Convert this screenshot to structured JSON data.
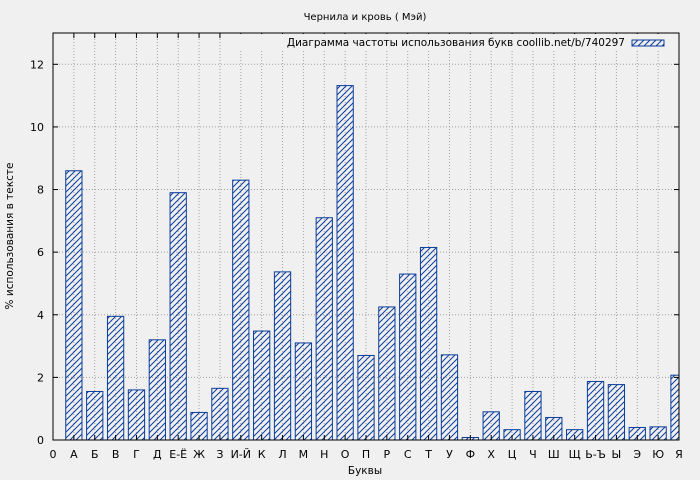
{
  "chart_data": {
    "type": "bar",
    "title": "Чернила и кровь ( Мэй)",
    "xlabel": "Буквы",
    "ylabel": "% использования в тексте",
    "legend": {
      "label": "Диаграмма частоты использования букв coollib.net/b/740297",
      "placement": "top-right"
    },
    "grid": true,
    "ylim": [
      0,
      13
    ],
    "yticks": [
      0,
      2,
      4,
      6,
      8,
      10,
      12
    ],
    "x_axis_ticks": [
      "0",
      "А",
      "Б",
      "В",
      "Г",
      "Д",
      "Е-Ё",
      "Ж",
      "З",
      "И-Й",
      "К",
      "Л",
      "М",
      "Н",
      "О",
      "П",
      "Р",
      "С",
      "Т",
      "У",
      "Ф",
      "Х",
      "Ц",
      "Ч",
      "Ш",
      "Щ",
      "Ь-Ъ",
      "Ы",
      "Э",
      "Ю",
      "Я"
    ],
    "categories": [
      "А",
      "Б",
      "В",
      "Г",
      "Д",
      "Е-Ё",
      "Ж",
      "З",
      "И-Й",
      "К",
      "Л",
      "М",
      "Н",
      "О",
      "П",
      "Р",
      "С",
      "Т",
      "У",
      "Ф",
      "Х",
      "Ц",
      "Ч",
      "Ш",
      "Щ",
      "Ь-Ъ",
      "Ы",
      "Э",
      "Ю",
      "Я"
    ],
    "values": [
      8.6,
      1.55,
      3.95,
      1.6,
      3.2,
      7.9,
      0.88,
      1.65,
      8.3,
      3.48,
      5.37,
      3.1,
      7.1,
      11.32,
      2.7,
      4.25,
      5.3,
      6.15,
      2.72,
      0.08,
      0.9,
      0.33,
      1.55,
      0.72,
      0.33,
      1.87,
      1.77,
      0.4,
      0.42,
      2.07
    ],
    "colors": {
      "bar_edge": "#0b3d9c",
      "hatch": "#0b3d9c",
      "plot_bg": "#f0f0f0",
      "grid": "#a0a0a0"
    }
  }
}
